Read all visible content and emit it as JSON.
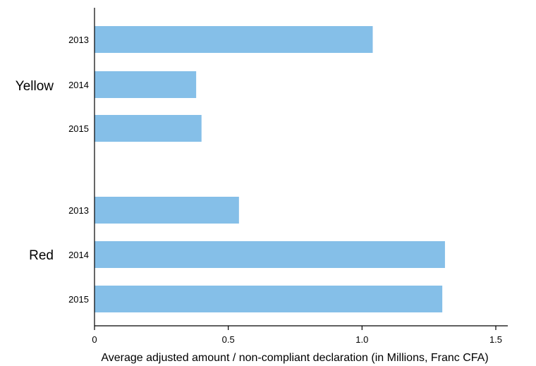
{
  "chart_data": {
    "type": "bar",
    "orientation": "horizontal",
    "title": "",
    "xlabel": "Average adjusted amount / non-compliant declaration (in Millions, Franc CFA)",
    "ylabel": "",
    "xlim": [
      0,
      1.55
    ],
    "xticks": [
      "0",
      "0.5",
      "1.0",
      "1.5"
    ],
    "grid": false,
    "legend": "none",
    "bar_color": "#85bfe8",
    "groups": [
      {
        "label": "Yellow",
        "categories": [
          "2013",
          "2014",
          "2015"
        ],
        "values": [
          1.04,
          0.38,
          0.4
        ]
      },
      {
        "label": "Red",
        "categories": [
          "2013",
          "2014",
          "2015"
        ],
        "values": [
          0.54,
          1.31,
          1.3
        ]
      }
    ]
  }
}
